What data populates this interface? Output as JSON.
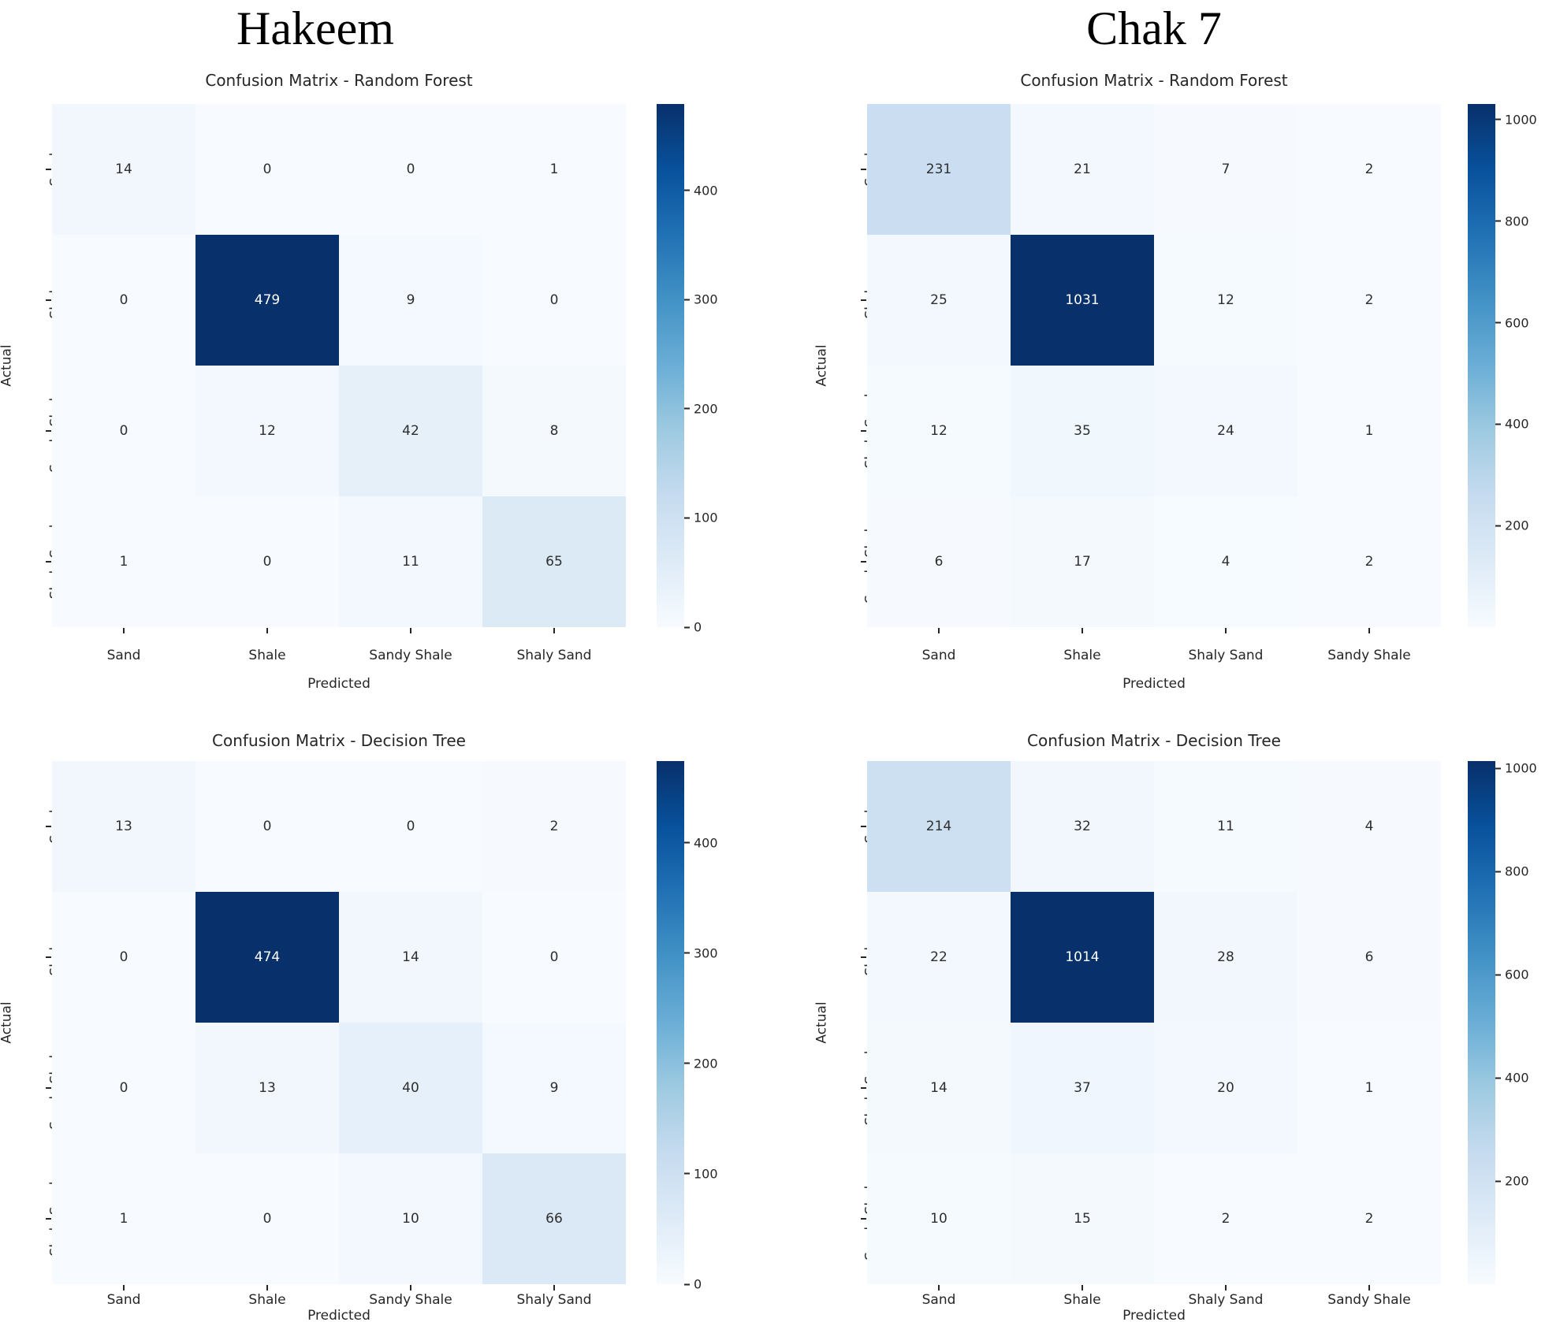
{
  "headers": [
    {
      "label": "Hakeem"
    },
    {
      "label": "Chak 7"
    }
  ],
  "chart_data": [
    {
      "type": "heatmap",
      "group": "Hakeem",
      "title": "Confusion Matrix - Random Forest",
      "xlabel": "Predicted",
      "ylabel": "Actual",
      "x_categories": [
        "Sand",
        "Shale",
        "Sandy Shale",
        "Shaly Sand"
      ],
      "y_categories": [
        "Sand",
        "Shale",
        "Sandy Shale",
        "Shaly Sand"
      ],
      "values": [
        [
          14,
          0,
          0,
          1
        ],
        [
          0,
          479,
          9,
          0
        ],
        [
          0,
          12,
          42,
          8
        ],
        [
          1,
          0,
          11,
          65
        ]
      ],
      "vmin": 0,
      "vmax": 479,
      "colormap": "Blues",
      "colorbar_ticks": [
        0,
        100,
        200,
        300,
        400
      ],
      "legend_position": "right",
      "grid": false
    },
    {
      "type": "heatmap",
      "group": "Chak 7",
      "title": "Confusion Matrix - Random Forest",
      "xlabel": "Predicted",
      "ylabel": "Actual",
      "x_categories": [
        "Sand",
        "Shale",
        "Shaly Sand",
        "Sandy Shale"
      ],
      "y_categories": [
        "Sand",
        "Shale",
        "Shaly Sand",
        "Sandy Shale"
      ],
      "values": [
        [
          231,
          21,
          7,
          2
        ],
        [
          25,
          1031,
          12,
          2
        ],
        [
          12,
          35,
          24,
          1
        ],
        [
          6,
          17,
          4,
          2
        ]
      ],
      "vmin": 0,
      "vmax": 1031,
      "colormap": "Blues",
      "colorbar_ticks": [
        200,
        400,
        600,
        800,
        1000
      ],
      "legend_position": "right",
      "grid": false
    },
    {
      "type": "heatmap",
      "group": "Hakeem",
      "title": "Confusion Matrix - Decision Tree",
      "xlabel": "Predicted",
      "ylabel": "Actual",
      "x_categories": [
        "Sand",
        "Shale",
        "Sandy Shale",
        "Shaly Sand"
      ],
      "y_categories": [
        "Sand",
        "Shale",
        "Sandy Shale",
        "Shaly Sand"
      ],
      "values": [
        [
          13,
          0,
          0,
          2
        ],
        [
          0,
          474,
          14,
          0
        ],
        [
          0,
          13,
          40,
          9
        ],
        [
          1,
          0,
          10,
          66
        ]
      ],
      "vmin": 0,
      "vmax": 474,
      "colormap": "Blues",
      "colorbar_ticks": [
        0,
        100,
        200,
        300,
        400
      ],
      "legend_position": "right",
      "grid": false
    },
    {
      "type": "heatmap",
      "group": "Chak 7",
      "title": "Confusion Matrix - Decision Tree",
      "xlabel": "Predicted",
      "ylabel": "Actual",
      "x_categories": [
        "Sand",
        "Shale",
        "Shaly Sand",
        "Sandy Shale"
      ],
      "y_categories": [
        "Sand",
        "Shale",
        "Shaly Sand",
        "Sandy Shale"
      ],
      "values": [
        [
          214,
          32,
          11,
          4
        ],
        [
          22,
          1014,
          28,
          6
        ],
        [
          14,
          37,
          20,
          1
        ],
        [
          10,
          15,
          2,
          2
        ]
      ],
      "vmin": 0,
      "vmax": 1014,
      "colormap": "Blues",
      "colorbar_ticks": [
        200,
        400,
        600,
        800,
        1000
      ],
      "legend_position": "right",
      "grid": false
    }
  ],
  "colors": {
    "background": "#ffffff",
    "heat_low": "#f7fbff",
    "heat_high": "#08306b",
    "annotation_dark": "#2e2e2e",
    "annotation_light": "#ffffff",
    "tick_text": "#262626"
  }
}
